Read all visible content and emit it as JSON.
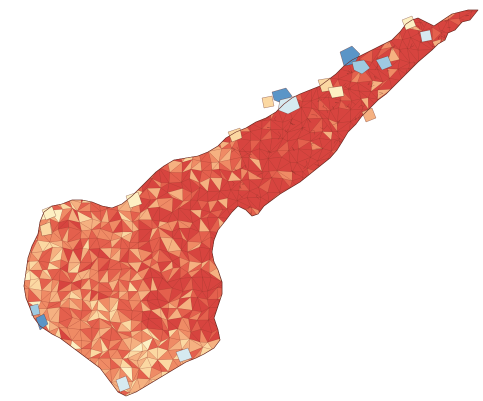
{
  "map": {
    "palette": {
      "very_high": "#d7443f",
      "high": "#e4604d",
      "medium_high": "#ef8b65",
      "medium": "#f5b181",
      "low": "#fbd8a2",
      "very_low": "#fdf0c3",
      "pale_blue": "#d6eaf0",
      "light_blue": "#9ecae1",
      "blue": "#5a95c7",
      "boundary": "#6b2a22",
      "background": "#ffffff"
    }
  }
}
